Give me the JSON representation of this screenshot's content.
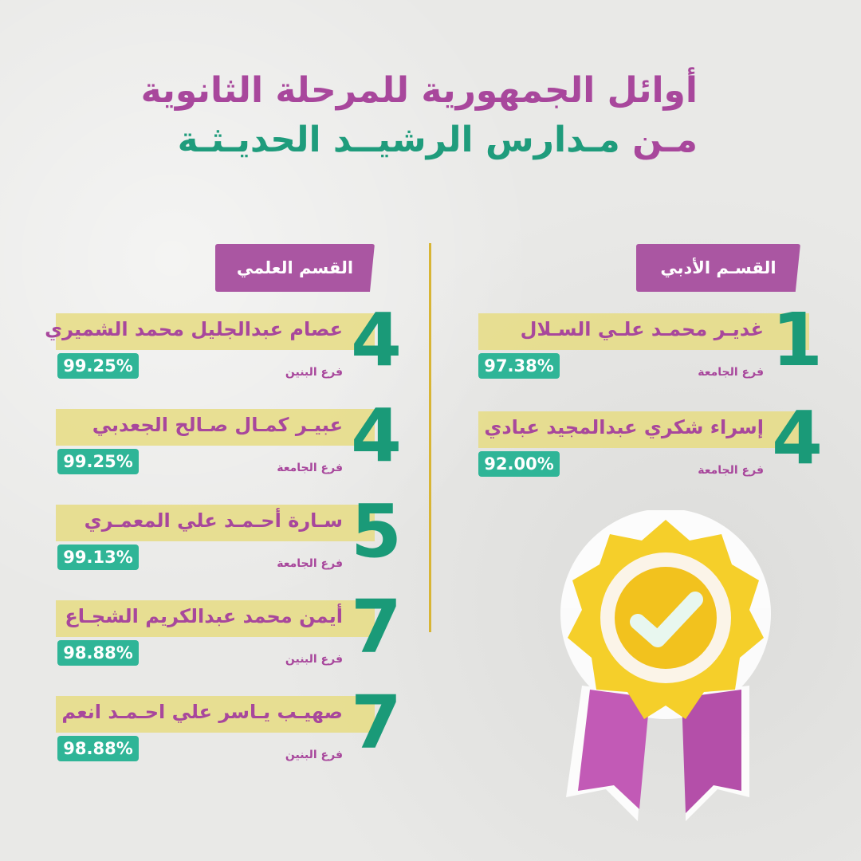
{
  "title_line1": "أوائل الجمهورية للمرحلة الثانوية",
  "title_line2_prefix": "مـن",
  "title_line2_rest": "مـدارس الرشيــد الحديـثـة",
  "colors": {
    "purple": "#a8479c",
    "green": "#1a9a78",
    "teal": "#2fb597",
    "yellow": "#e6dc82",
    "gold": "#d8b535"
  },
  "literary": {
    "heading": "القسـم الأدبي",
    "entries": [
      {
        "rank": "1",
        "name": "غديـر محمـد علـي السـلال",
        "score": "97.38%",
        "branch": "فرع الجامعة"
      },
      {
        "rank": "4",
        "name": "إسراء شكري عبدالمجيد عبادي",
        "score": "92.00%",
        "branch": "فرع الجامعة"
      }
    ]
  },
  "scientific": {
    "heading": "القسم العلمي",
    "entries": [
      {
        "rank": "4",
        "name": "عصام عبدالجليل محمد الشميري",
        "score": "99.25%",
        "branch": "فرع البنين"
      },
      {
        "rank": "4",
        "name": "عبيـر كمـال صـالح الجعدبي",
        "score": "99.25%",
        "branch": "فرع الجامعة"
      },
      {
        "rank": "5",
        "name": "سـارة أحـمـد علي المعمـري",
        "score": "99.13%",
        "branch": "فرع الجامعة"
      },
      {
        "rank": "7",
        "name": "أيمن محمد عبدالكريم الشجـاع",
        "score": "98.88%",
        "branch": "فرع البنين"
      },
      {
        "rank": "7",
        "name": "صهيـب يـاسر علي احـمـد انعم",
        "score": "98.88%",
        "branch": "فرع البنين"
      }
    ]
  },
  "medal_icon": "award-ribbon-check-icon"
}
